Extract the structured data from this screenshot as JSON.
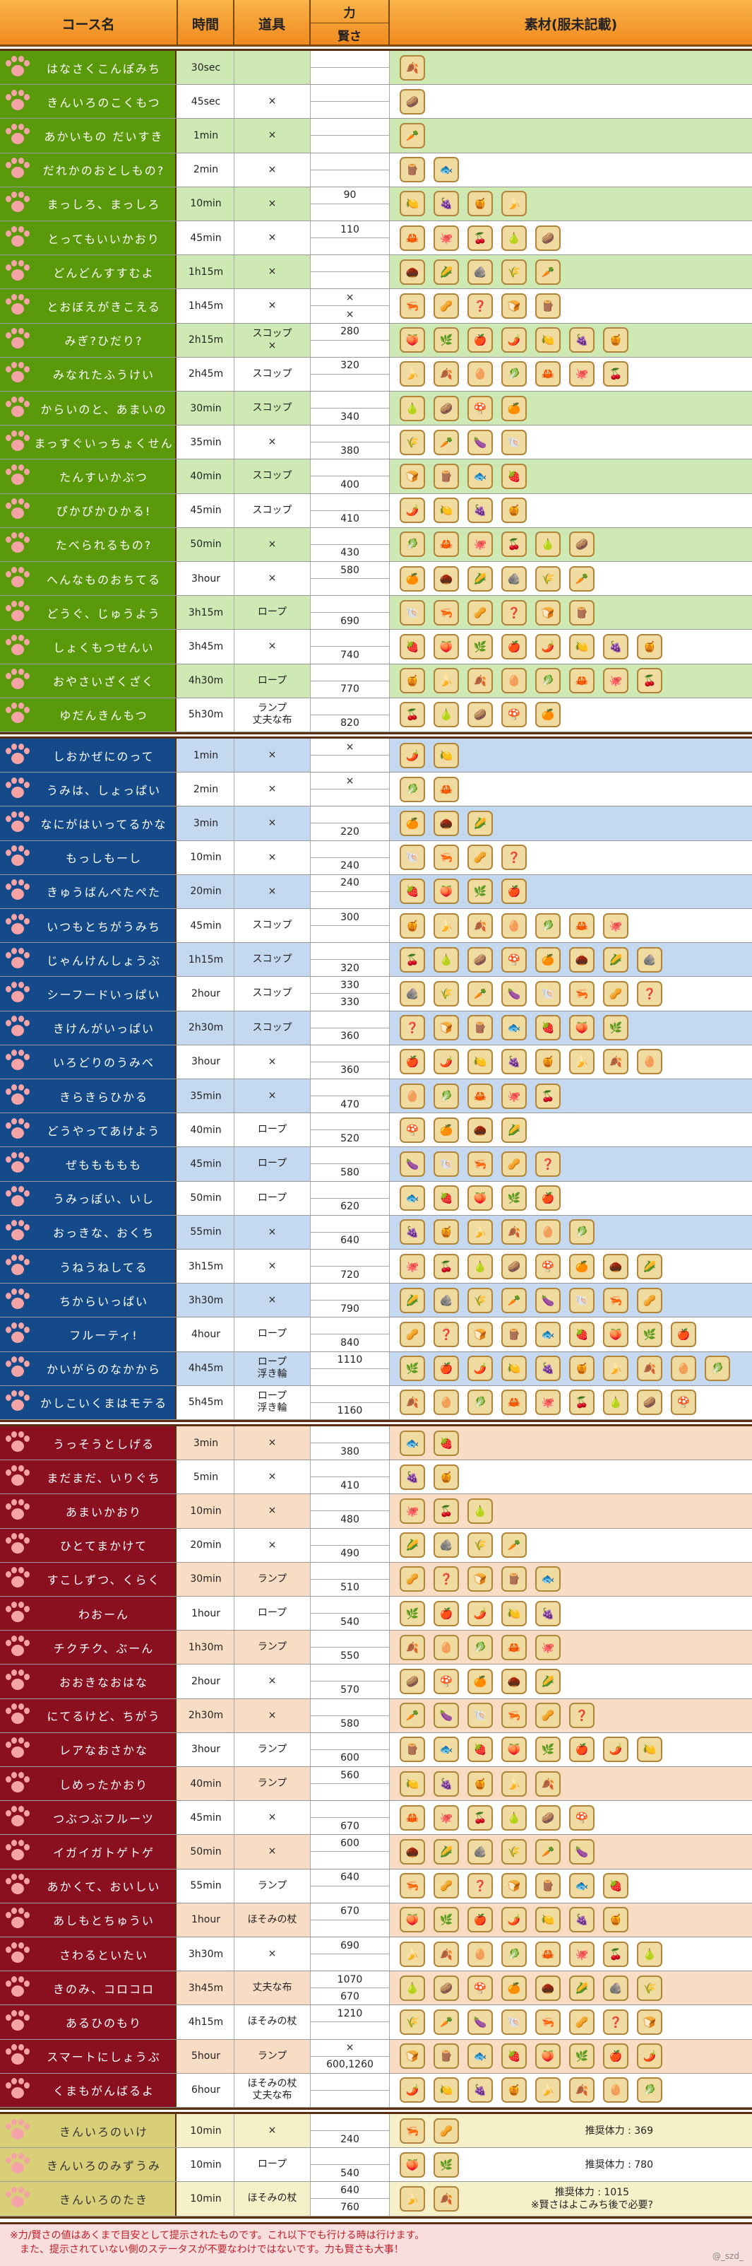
{
  "headers": {
    "name": "コース名",
    "time": "時間",
    "tool": "道具",
    "power": "力",
    "wisdom": "賢さ",
    "materials": "素材(服未記載)"
  },
  "colors": {
    "green": "#5a9a0a",
    "blue": "#154a8a",
    "red": "#8a1020",
    "gold": "#d8cf78",
    "rowGreen": "#cfe9b4",
    "rowBlue": "#c4d9f0",
    "rowRed": "#f8dcc4",
    "rowGold": "#f5f0c8",
    "alt": "#ffffff",
    "paw": "#f4a3a6"
  },
  "sections": [
    {
      "theme": "green",
      "rows": [
        {
          "name": "はなさくこんぽみち",
          "time": "30sec",
          "tool": [
            ""
          ],
          "pa": "",
          "pb": "",
          "items": 1
        },
        {
          "name": "きんいろのこくもつ",
          "time": "45sec",
          "tool": [
            "×"
          ],
          "pa": "",
          "pb": "",
          "items": 1
        },
        {
          "name": "あかいもの だいすき",
          "time": "1min",
          "tool": [
            "×"
          ],
          "pa": "",
          "pb": "",
          "items": 1
        },
        {
          "name": "だれかのおとしもの?",
          "time": "2min",
          "tool": [
            "×"
          ],
          "pa": "",
          "pb": "",
          "items": 2
        },
        {
          "name": "まっしろ、まっしろ",
          "time": "10min",
          "tool": [
            "×"
          ],
          "pa": "90",
          "pb": "",
          "items": 4
        },
        {
          "name": "とってもいいかおり",
          "time": "45min",
          "tool": [
            "×"
          ],
          "pa": "110",
          "pb": "",
          "items": 5
        },
        {
          "name": "どんどんすすむよ",
          "time": "1h15m",
          "tool": [
            "×"
          ],
          "pa": "",
          "pb": "",
          "items": 5
        },
        {
          "name": "とおぼえがきこえる",
          "time": "1h45m",
          "tool": [
            "×"
          ],
          "pa": "×",
          "pb": "×",
          "items": 5
        },
        {
          "name": "みぎ?ひだり?",
          "time": "2h15m",
          "tool": [
            "スコップ",
            "×"
          ],
          "pa": "280",
          "pb": "",
          "items": 7
        },
        {
          "name": "みなれたふうけい",
          "time": "2h45m",
          "tool": [
            "スコップ"
          ],
          "pa": "320",
          "pb": "",
          "items": 7
        },
        {
          "name": "からいのと、あまいの",
          "time": "30min",
          "tool": [
            "スコップ"
          ],
          "pa": "",
          "pb": "340",
          "items": 4
        },
        {
          "name": "まっすぐいっちょくせん",
          "time": "35min",
          "tool": [
            "×"
          ],
          "pa": "",
          "pb": "380",
          "items": 4
        },
        {
          "name": "たんすいかぶつ",
          "time": "40min",
          "tool": [
            "スコップ"
          ],
          "pa": "",
          "pb": "400",
          "items": 4
        },
        {
          "name": "ぴかぴかひかる!",
          "time": "45min",
          "tool": [
            "スコップ"
          ],
          "pa": "",
          "pb": "410",
          "items": 4
        },
        {
          "name": "たべられるもの?",
          "time": "50min",
          "tool": [
            "×"
          ],
          "pa": "",
          "pb": "430",
          "items": 6
        },
        {
          "name": "へんなものおちてる",
          "time": "3hour",
          "tool": [
            "×"
          ],
          "pa": "580",
          "pb": "",
          "items": 6
        },
        {
          "name": "どうぐ、じゅうよう",
          "time": "3h15m",
          "tool": [
            "ロープ"
          ],
          "pa": "",
          "pb": "690",
          "items": 6
        },
        {
          "name": "しょくもつせんい",
          "time": "3h45m",
          "tool": [
            "×"
          ],
          "pa": "",
          "pb": "740",
          "items": 8
        },
        {
          "name": "おやさいざくざく",
          "time": "4h30m",
          "tool": [
            "ロープ"
          ],
          "pa": "",
          "pb": "770",
          "items": 8
        },
        {
          "name": "ゆだんきんもつ",
          "time": "5h30m",
          "tool": [
            "ランプ",
            "丈夫な布"
          ],
          "pa": "",
          "pb": "820",
          "items": 5
        }
      ]
    },
    {
      "theme": "blue",
      "rows": [
        {
          "name": "しおかぜにのって",
          "time": "1min",
          "tool": [
            "×"
          ],
          "pa": "×",
          "pb": "",
          "items": 2
        },
        {
          "name": "うみは、しょっぱい",
          "time": "2min",
          "tool": [
            "×"
          ],
          "pa": "×",
          "pb": "",
          "items": 2
        },
        {
          "name": "なにがはいってるかな",
          "time": "3min",
          "tool": [
            "×"
          ],
          "pa": "",
          "pb": "220",
          "items": 3
        },
        {
          "name": "もっしもーし",
          "time": "10min",
          "tool": [
            "×"
          ],
          "pa": "",
          "pb": "240",
          "items": 4
        },
        {
          "name": "きゅうばんぺたぺた",
          "time": "20min",
          "tool": [
            "×"
          ],
          "pa": "240",
          "pb": "",
          "items": 4
        },
        {
          "name": "いつもとちがうみち",
          "time": "45min",
          "tool": [
            "スコップ"
          ],
          "pa": "300",
          "pb": "",
          "items": 7
        },
        {
          "name": "じゃんけんしょうぶ",
          "time": "1h15m",
          "tool": [
            "スコップ"
          ],
          "pa": "",
          "pb": "320",
          "items": 8
        },
        {
          "name": "シーフードいっぱい",
          "time": "2hour",
          "tool": [
            "スコップ"
          ],
          "pa": "330",
          "pb": "330",
          "items": 8
        },
        {
          "name": "きけんがいっぱい",
          "time": "2h30m",
          "tool": [
            "スコップ"
          ],
          "pa": "",
          "pb": "360",
          "items": 7
        },
        {
          "name": "いろどりのうみべ",
          "time": "3hour",
          "tool": [
            "×"
          ],
          "pa": "",
          "pb": "360",
          "items": 8
        },
        {
          "name": "きらきらひかる",
          "time": "35min",
          "tool": [
            "×"
          ],
          "pa": "",
          "pb": "470",
          "items": 5
        },
        {
          "name": "どうやってあけよう",
          "time": "40min",
          "tool": [
            "ロープ"
          ],
          "pa": "",
          "pb": "520",
          "items": 4
        },
        {
          "name": "ぜももももも",
          "time": "45min",
          "tool": [
            "ロープ"
          ],
          "pa": "",
          "pb": "580",
          "items": 5
        },
        {
          "name": "うみっぽい、いし",
          "time": "50min",
          "tool": [
            "ロープ"
          ],
          "pa": "",
          "pb": "620",
          "items": 5
        },
        {
          "name": "おっきな、おくち",
          "time": "55min",
          "tool": [
            "×"
          ],
          "pa": "",
          "pb": "640",
          "items": 6
        },
        {
          "name": "うねうねしてる",
          "time": "3h15m",
          "tool": [
            "×"
          ],
          "pa": "",
          "pb": "720",
          "items": 8
        },
        {
          "name": "ちからいっぱい",
          "time": "3h30m",
          "tool": [
            "×"
          ],
          "pa": "",
          "pb": "790",
          "items": 8
        },
        {
          "name": "フルーティ!",
          "time": "4hour",
          "tool": [
            "ロープ"
          ],
          "pa": "",
          "pb": "840",
          "items": 9
        },
        {
          "name": "かいがらのなかから",
          "time": "4h45m",
          "tool": [
            "ロープ",
            "浮き輪"
          ],
          "pa": "1110",
          "pb": "",
          "items": 10
        },
        {
          "name": "かしこいくまはモテる",
          "time": "5h45m",
          "tool": [
            "ロープ",
            "浮き輪"
          ],
          "pa": "",
          "pb": "1160",
          "items": 9
        }
      ]
    },
    {
      "theme": "red",
      "rows": [
        {
          "name": "うっそうとしげる",
          "time": "3min",
          "tool": [
            "×"
          ],
          "pa": "",
          "pb": "380",
          "items": 2
        },
        {
          "name": "まだまだ、いりぐち",
          "time": "5min",
          "tool": [
            "×"
          ],
          "pa": "",
          "pb": "410",
          "items": 2
        },
        {
          "name": "あまいかおり",
          "time": "10min",
          "tool": [
            "×"
          ],
          "pa": "",
          "pb": "480",
          "items": 3
        },
        {
          "name": "ひとてまかけて",
          "time": "20min",
          "tool": [
            "×"
          ],
          "pa": "",
          "pb": "490",
          "items": 4
        },
        {
          "name": "すこしずつ、くらく",
          "time": "30min",
          "tool": [
            "ランプ"
          ],
          "pa": "",
          "pb": "510",
          "items": 5
        },
        {
          "name": "わおーん",
          "time": "1hour",
          "tool": [
            "ロープ"
          ],
          "pa": "",
          "pb": "540",
          "items": 5
        },
        {
          "name": "チクチク、ぶーん",
          "time": "1h30m",
          "tool": [
            "ランプ"
          ],
          "pa": "",
          "pb": "550",
          "items": 5
        },
        {
          "name": "おおきなおはな",
          "time": "2hour",
          "tool": [
            "×"
          ],
          "pa": "",
          "pb": "570",
          "items": 5
        },
        {
          "name": "にてるけど、ちがう",
          "time": "2h30m",
          "tool": [
            "×"
          ],
          "pa": "",
          "pb": "580",
          "items": 6
        },
        {
          "name": "レアなおさかな",
          "time": "3hour",
          "tool": [
            "ランプ"
          ],
          "pa": "",
          "pb": "600",
          "items": 8
        },
        {
          "name": "しめったかおり",
          "time": "40min",
          "tool": [
            "ランプ"
          ],
          "pa": "560",
          "pb": "",
          "items": 5
        },
        {
          "name": "つぶつぶフルーツ",
          "time": "45min",
          "tool": [
            "×"
          ],
          "pa": "",
          "pb": "670",
          "items": 6
        },
        {
          "name": "イガイガトゲトゲ",
          "time": "50min",
          "tool": [
            "×"
          ],
          "pa": "600",
          "pb": "",
          "items": 6
        },
        {
          "name": "あかくて、おいしい",
          "time": "55min",
          "tool": [
            "ランプ"
          ],
          "pa": "640",
          "pb": "",
          "items": 7
        },
        {
          "name": "あしもとちゅうい",
          "time": "1hour",
          "tool": [
            "ほそみの杖"
          ],
          "pa": "670",
          "pb": "",
          "items": 7
        },
        {
          "name": "さわるといたい",
          "time": "3h30m",
          "tool": [
            "×"
          ],
          "pa": "690",
          "pb": "",
          "items": 8
        },
        {
          "name": "きのみ、コロコロ",
          "time": "3h45m",
          "tool": [
            "丈夫な布"
          ],
          "pa": "1070",
          "pb": "670",
          "items": 8
        },
        {
          "name": "あるひのもり",
          "time": "4h15m",
          "tool": [
            "ほそみの杖"
          ],
          "pa": "1210",
          "pb": "",
          "items": 8
        },
        {
          "name": "スマートにしょうぶ",
          "time": "5hour",
          "tool": [
            "ランプ"
          ],
          "pa": "×",
          "pb": "600,1260",
          "items": 8
        },
        {
          "name": "くまもがんばるよ",
          "time": "6hour",
          "tool": [
            "ほそみの杖",
            "丈夫な布"
          ],
          "pa": "",
          "pb": "",
          "items": 8
        }
      ]
    },
    {
      "theme": "gold",
      "rows": [
        {
          "name": "きんいろのいけ",
          "time": "10min",
          "tool": [
            "×"
          ],
          "pa": "",
          "pb": "240",
          "items": 2,
          "rec": [
            "推奨体力 : 369"
          ]
        },
        {
          "name": "きんいろのみずうみ",
          "time": "10min",
          "tool": [
            "ロープ"
          ],
          "pa": "",
          "pb": "540",
          "items": 2,
          "rec": [
            "推奨体力 : 780"
          ]
        },
        {
          "name": "きんいろのたき",
          "time": "10min",
          "tool": [
            "ほそみの杖"
          ],
          "pa": "640",
          "pb": "760",
          "items": 2,
          "rec": [
            "推奨体力 : 1015",
            "※賢さはよこみち後で必要?"
          ]
        }
      ]
    }
  ],
  "icons": [
    "🍂",
    "🌾",
    "🍎",
    "🥔",
    "🍞",
    "🥚",
    "🥕",
    "🌶️",
    "🍄",
    "🪵",
    "🥬",
    "🍆",
    "🍋",
    "🍊",
    "🐟",
    "🦀",
    "🐚",
    "🍇",
    "🌰",
    "🍓",
    "🐙",
    "🦐",
    "🍯",
    "🌽",
    "🍑",
    "🍒",
    "🥜",
    "🍌",
    "🪨",
    "🌿",
    "🍐",
    "❓"
  ],
  "footer": {
    "lines": [
      "※力/賢さの値はあくまで目安として提示されたものです。これ以下でも行ける時は行けます。",
      "　また、提示されていない側のステータスが不要なわけではないです。力も賢さも大事！"
    ],
    "credit": "@_szd_"
  }
}
